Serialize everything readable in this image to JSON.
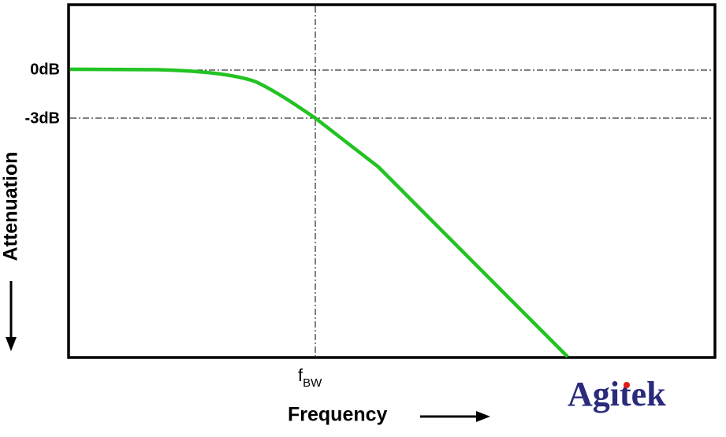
{
  "levels": [
    "0dB",
    "-3dB"
  ],
  "marker": {
    "symbol": "f",
    "subscript": "BW"
  },
  "axis_labels": {
    "x": "Frequency",
    "y": "Attenuation"
  },
  "logo": "Agitek"
}
